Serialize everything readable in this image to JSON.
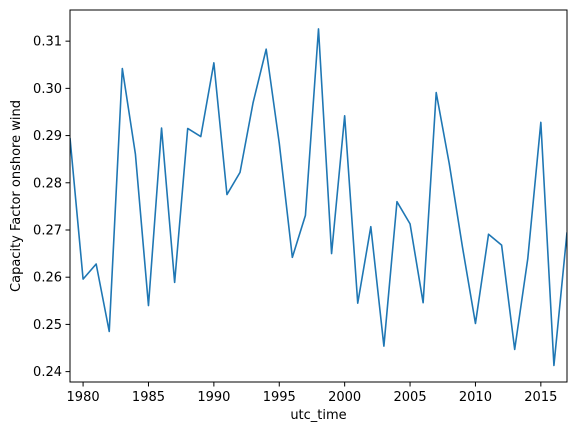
{
  "chart_data": {
    "type": "line",
    "title": "",
    "xlabel": "utc_time",
    "ylabel": "Capacity Factor onshore wind",
    "xlim": [
      1979,
      2017
    ],
    "ylim": [
      0.2378,
      0.3166
    ],
    "xticks": [
      1980,
      1985,
      1990,
      1995,
      2000,
      2005,
      2010,
      2015
    ],
    "xtick_labels": [
      "1980",
      "1985",
      "1990",
      "1995",
      "2000",
      "2005",
      "2010",
      "2015"
    ],
    "yticks": [
      0.24,
      0.25,
      0.26,
      0.27,
      0.28,
      0.29,
      0.3,
      0.31
    ],
    "ytick_labels": [
      "0.24",
      "0.25",
      "0.26",
      "0.27",
      "0.28",
      "0.29",
      "0.30",
      "0.31"
    ],
    "grid": false,
    "legend": "none",
    "series": [
      {
        "color": "#1f77b4",
        "x": [
          1979,
          1980,
          1981,
          1982,
          1983,
          1984,
          1985,
          1986,
          1987,
          1988,
          1989,
          1990,
          1991,
          1992,
          1993,
          1994,
          1995,
          1996,
          1997,
          1998,
          1999,
          2000,
          2001,
          2002,
          2003,
          2004,
          2005,
          2006,
          2007,
          2008,
          2009,
          2010,
          2011,
          2012,
          2013,
          2014,
          2015,
          2016,
          2017
        ],
        "values": [
          0.2895,
          0.2596,
          0.2628,
          0.2485,
          0.3042,
          0.2861,
          0.254,
          0.2916,
          0.2589,
          0.2915,
          0.2898,
          0.3054,
          0.2775,
          0.2822,
          0.297,
          0.3083,
          0.2884,
          0.2642,
          0.2731,
          0.3126,
          0.265,
          0.2942,
          0.2545,
          0.2707,
          0.2454,
          0.276,
          0.2713,
          0.2546,
          0.2991,
          0.284,
          0.2665,
          0.2502,
          0.2691,
          0.2668,
          0.2447,
          0.2639,
          0.2928,
          0.2413,
          0.2695
        ]
      }
    ]
  }
}
